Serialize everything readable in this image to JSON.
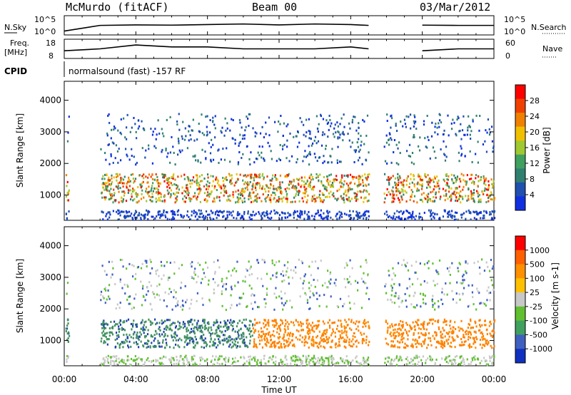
{
  "header": {
    "station": "McMurdo (fitACF)",
    "beam": "Beam 00",
    "date": "03/Mar/2012"
  },
  "strip_labels": {
    "nsky": "N.Sky",
    "nsky_ticks": [
      "10^5",
      "10^0"
    ],
    "nsearch": "N.Search",
    "nsearch_ticks": [
      "10^5",
      "10^0"
    ],
    "freq": "Freq.",
    "freq_unit": "[MHz]",
    "freq_ticks": [
      "18",
      "8"
    ],
    "nave": "Nave",
    "nave_ticks": [
      "60",
      "0"
    ],
    "cpid": "CPID",
    "cpid_text": "normalsound (fast) -157 RF"
  },
  "colors": {
    "power_scale": [
      "#1030e0",
      "#2050b0",
      "#308070",
      "#40a060",
      "#a0c830",
      "#f0c000",
      "#f08000",
      "#f04000",
      "#ff0000"
    ],
    "velocity_scale": [
      "#ff0000",
      "#ff6000",
      "#ff9000",
      "#ffc000",
      "#c8c8c8",
      "#60c030",
      "#40a060",
      "#4060c0",
      "#1030c0"
    ],
    "gray": "#c8c8c8",
    "orange": "#ff8000",
    "green": "#409060",
    "blue": "#2040b0"
  },
  "chart_data": [
    {
      "type": "line",
      "panel": "N.Sky / N.Search counts",
      "ylabels": [
        "N.Sky",
        "N.Search"
      ],
      "yscale": "log",
      "ylim": [
        1,
        100000
      ],
      "series": [
        {
          "name": "N.Sky",
          "x": [
            "00:00",
            "02:00",
            "04:00",
            "06:00",
            "08:00",
            "10:00",
            "12:00",
            "14:00",
            "16:00",
            "17:00",
            "18:00",
            "20:00",
            "22:00",
            "00:00"
          ],
          "values": [
            10,
            300,
            400,
            350,
            500,
            700,
            400,
            700,
            500,
            300,
            null,
            350,
            300,
            300
          ]
        }
      ]
    },
    {
      "type": "line",
      "panel": "Frequency / Nave",
      "ylabels": [
        "Freq. [MHz]",
        "Nave"
      ],
      "ylim_left": [
        8,
        18
      ],
      "ylim_right": [
        0,
        60
      ],
      "series": [
        {
          "name": "Freq.",
          "x": [
            "00:00",
            "02:00",
            "04:00",
            "06:00",
            "08:00",
            "10:00",
            "12:00",
            "14:00",
            "16:00",
            "17:00",
            "18:00",
            "20:00",
            "22:00",
            "00:00"
          ],
          "values": [
            12,
            13,
            15,
            14,
            14,
            13,
            13,
            13,
            14,
            13,
            null,
            12,
            13,
            13
          ]
        }
      ]
    },
    {
      "type": "heatmap",
      "panel": "Power",
      "title": "McMurdo (fitACF) Beam 00",
      "ylabel": "Slant Range [km]",
      "xlabel": "Time UT",
      "x_ticks": [
        "00:00",
        "04:00",
        "08:00",
        "12:00",
        "16:00",
        "20:00",
        "00:00"
      ],
      "y_ticks": [
        "1000",
        "2000",
        "3000",
        "4000"
      ],
      "ylim": [
        200,
        4600
      ],
      "colorbar_label": "Power [dB]",
      "colorbar_ticks": [
        "4",
        "8",
        "12",
        "16",
        "20",
        "24",
        "28"
      ],
      "data_gaps_UT": [
        [
          "00:15",
          "02:00"
        ],
        [
          "17:00",
          "17:50"
        ]
      ]
    },
    {
      "type": "heatmap",
      "panel": "Velocity",
      "ylabel": "Slant Range [km]",
      "xlabel": "Time UT",
      "x_ticks": [
        "00:00",
        "04:00",
        "08:00",
        "12:00",
        "16:00",
        "20:00",
        "00:00"
      ],
      "y_ticks": [
        "1000",
        "2000",
        "3000",
        "4000"
      ],
      "ylim": [
        200,
        4600
      ],
      "colorbar_label": "Velocity [m s-1]",
      "colorbar_ticks": [
        "1000",
        "500",
        "100",
        "25",
        "-25",
        "-100",
        "-500",
        "-1000"
      ],
      "data_gaps_UT": [
        [
          "00:15",
          "02:00"
        ],
        [
          "17:00",
          "17:50"
        ]
      ]
    }
  ]
}
